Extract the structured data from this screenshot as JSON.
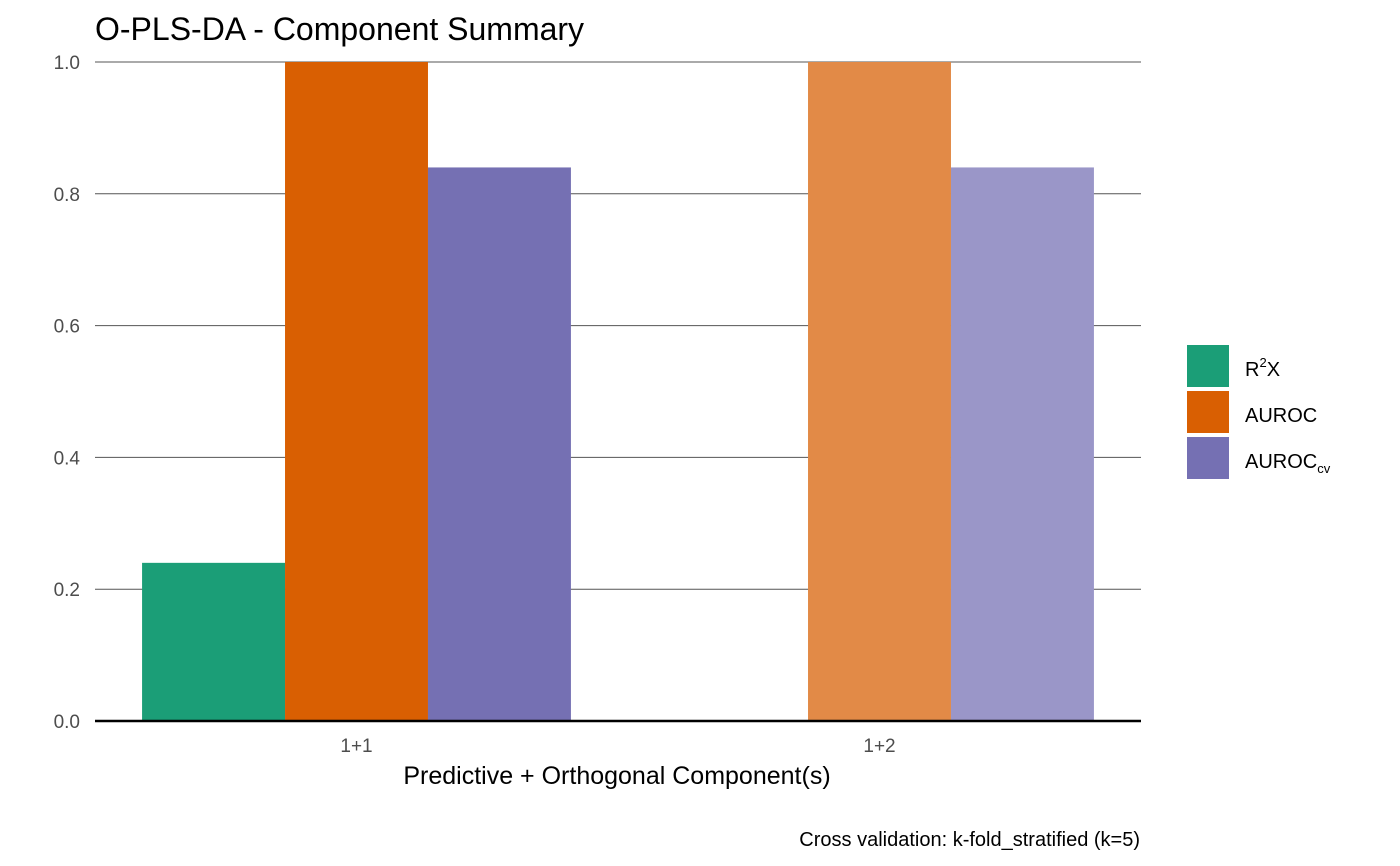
{
  "chart_data": {
    "type": "bar",
    "title": "O-PLS-DA  - Component Summary",
    "xlabel": "Predictive + Orthogonal Component(s)",
    "ylabel": "",
    "caption": "Cross validation: k-fold_stratified (k=5)",
    "categories": [
      "1+1",
      "1+2"
    ],
    "ylim": [
      0,
      1
    ],
    "yticks": [
      "0.0",
      "0.2",
      "0.4",
      "0.6",
      "0.8",
      "1.0"
    ],
    "grid": "horizontal",
    "legend_position": "right",
    "series": [
      {
        "name": "R2X",
        "legend": {
          "base": "R",
          "sup": "2",
          "tail": "X"
        },
        "values": [
          0.24,
          null
        ],
        "color": "#1b9e77",
        "faded_color": "#5fbd9f"
      },
      {
        "name": "AUROC",
        "legend": {
          "base": "AUROC"
        },
        "values": [
          1.0,
          1.0
        ],
        "color": "#d95f02",
        "faded_color": "#e28a47"
      },
      {
        "name": "AUROCcv",
        "legend": {
          "base": "AUROC",
          "sub": "cv"
        },
        "values": [
          0.84,
          0.84
        ],
        "color": "#7570b3",
        "faded_color": "#9a96c8"
      }
    ],
    "faded_categories": [
      "1+2"
    ]
  }
}
